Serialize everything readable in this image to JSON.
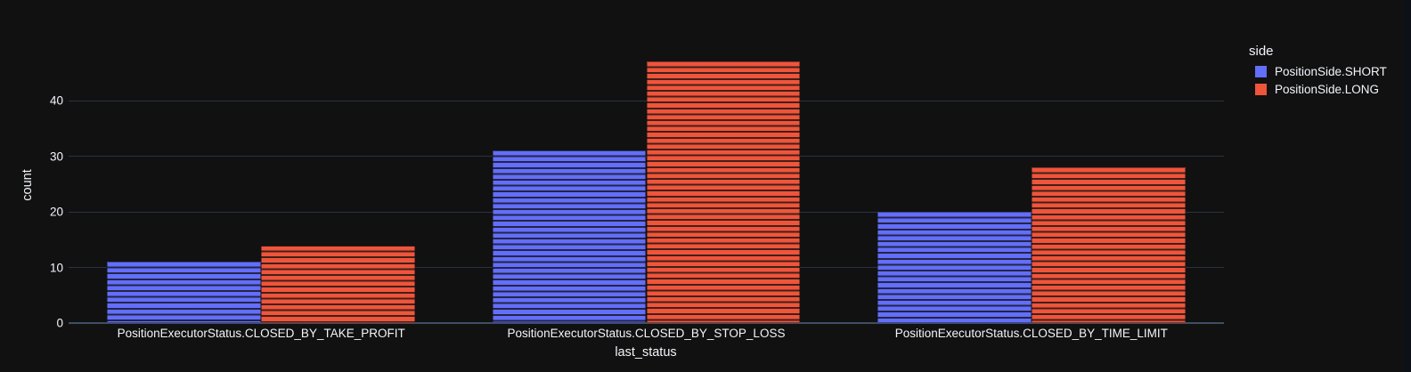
{
  "figure": {
    "background": "#111111",
    "text_color": "#f2f5fa",
    "grid_color": "#283442",
    "zeroline_color": "#3e4f63"
  },
  "chart_data": {
    "type": "bar",
    "mode": "grouped",
    "categories": [
      "PositionExecutorStatus.CLOSED_BY_TAKE_PROFIT",
      "PositionExecutorStatus.CLOSED_BY_STOP_LOSS",
      "PositionExecutorStatus.CLOSED_BY_TIME_LIMIT"
    ],
    "series": [
      {
        "name": "PositionSide.SHORT",
        "color": "#636EFA",
        "values": [
          11,
          31,
          20
        ]
      },
      {
        "name": "PositionSide.LONG",
        "color": "#EF553B",
        "values": [
          14,
          47,
          28
        ]
      }
    ],
    "title": "",
    "xlabel": "last_status",
    "ylabel": "count",
    "yticks": [
      0,
      10,
      20,
      30,
      40
    ],
    "ylim": [
      0,
      49.4
    ],
    "grid": true,
    "bar_pattern": "horizontal-stripes",
    "legend_title": "side",
    "legend_position": "right"
  }
}
